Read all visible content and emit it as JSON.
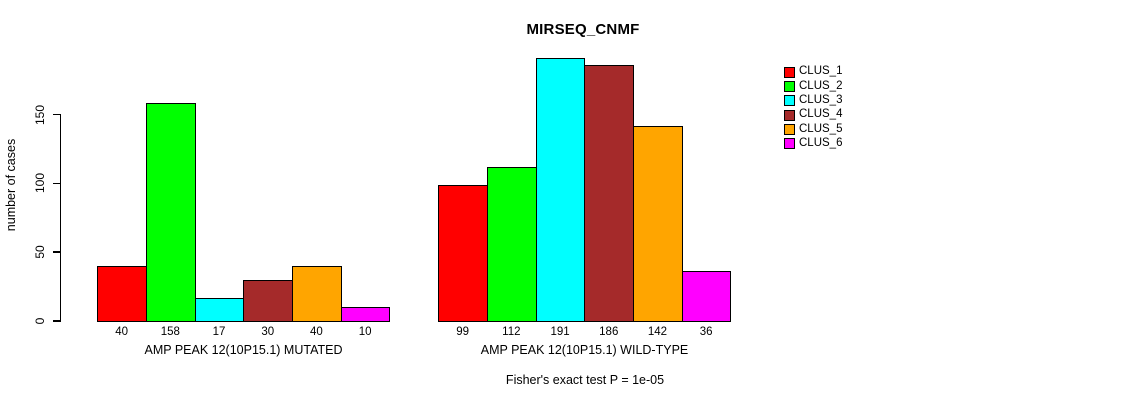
{
  "figure": {
    "background": "#FFFFFF",
    "text_color": "#000000"
  },
  "chart_data": {
    "type": "bar",
    "title": "MIRSEQ_CNMF",
    "xlabel": "",
    "ylabel": "number of cases",
    "ylim": [
      0,
      150
    ],
    "yticks": [
      0,
      50,
      100,
      150
    ],
    "grid": false,
    "legend_position": "right",
    "legend": [
      "CLUS_1",
      "CLUS_2",
      "CLUS_3",
      "CLUS_4",
      "CLUS_5",
      "CLUS_6"
    ],
    "colors": [
      "#FF0000",
      "#00FF00",
      "#00FFFF",
      "#A52A2A",
      "#FFA500",
      "#FF00FF"
    ],
    "groups": [
      {
        "label": "AMP PEAK 12(10P15.1) MUTATED",
        "values": [
          40,
          158,
          17,
          30,
          40,
          10
        ]
      },
      {
        "label": "AMP PEAK 12(10P15.1) WILD-TYPE",
        "values": [
          99,
          112,
          191,
          186,
          142,
          36
        ]
      }
    ],
    "bar_value_labels_shown": true,
    "footnote": "Fisher's exact test P = 1e-05"
  }
}
